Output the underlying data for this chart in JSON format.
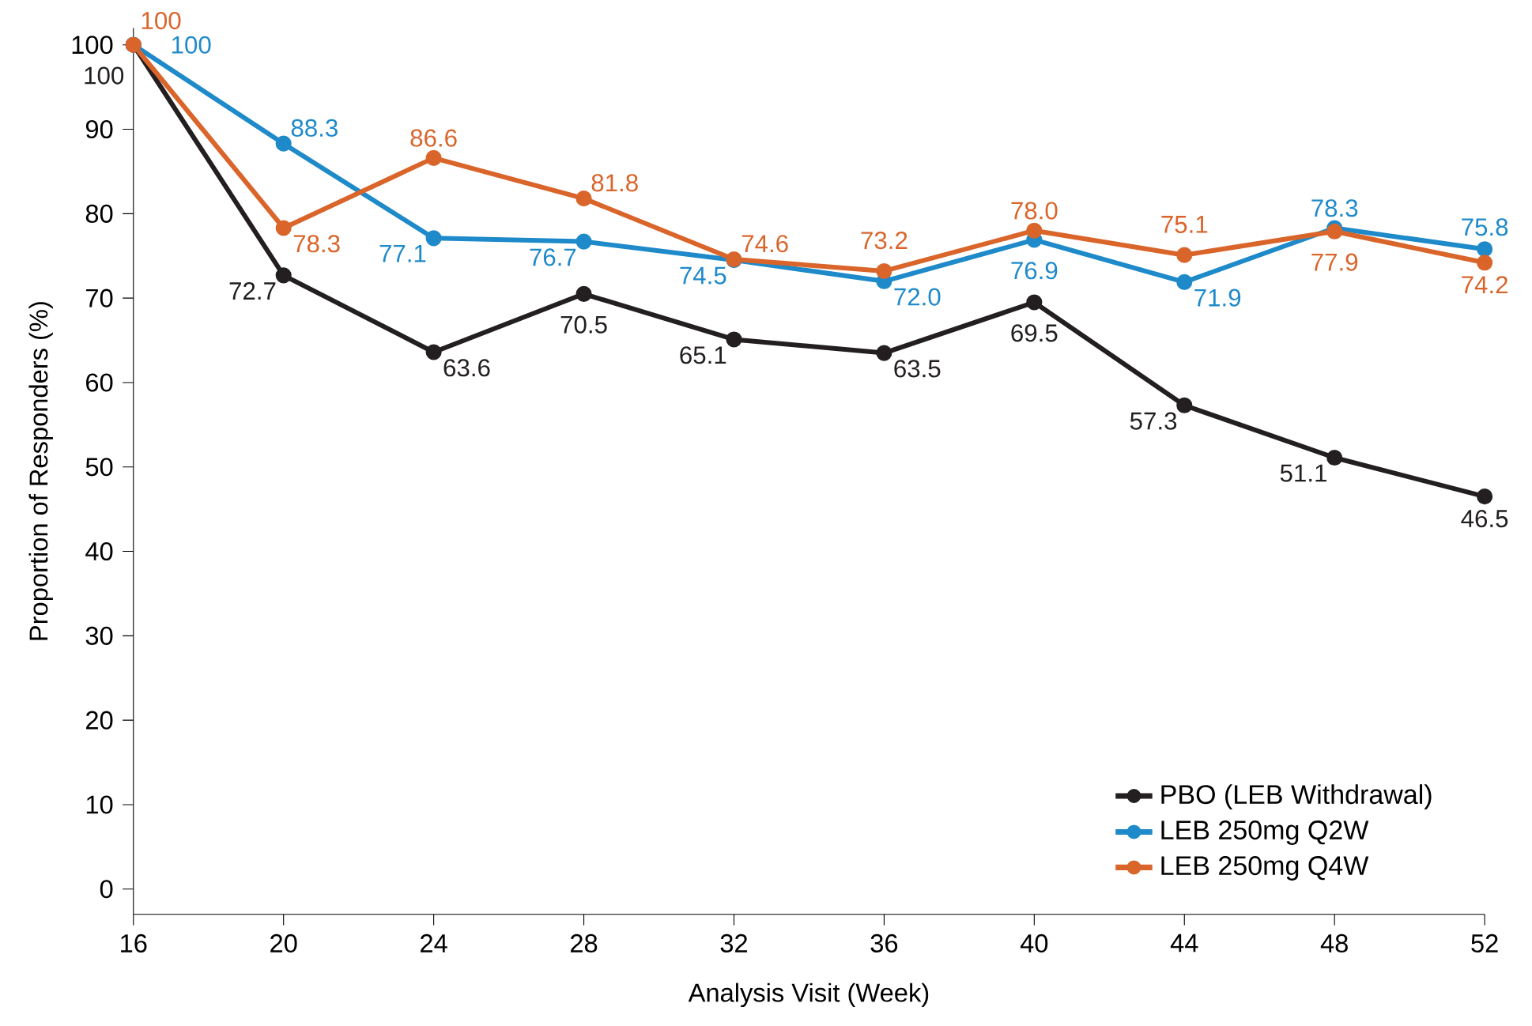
{
  "chart_data": {
    "type": "line",
    "xlabel": "Analysis Visit (Week)",
    "ylabel": "Proportion of Responders (%)",
    "x": [
      16,
      20,
      24,
      28,
      32,
      36,
      40,
      44,
      48,
      52
    ],
    "xlim": [
      16,
      52
    ],
    "xticks": [
      16,
      20,
      24,
      28,
      32,
      36,
      40,
      44,
      48,
      52
    ],
    "ylim": [
      -3,
      102
    ],
    "yticks": [
      0,
      10,
      20,
      30,
      40,
      50,
      60,
      70,
      80,
      90,
      100
    ],
    "grid": false,
    "legend": "bottom right",
    "marker": "circle",
    "line_style": "solid",
    "series": [
      {
        "name": "PBO (LEB Withdrawal)",
        "color": "#231f20",
        "values": [
          100,
          72.7,
          63.6,
          70.5,
          65.1,
          63.5,
          69.5,
          57.3,
          51.1,
          46.5
        ],
        "value_labels": [
          "100",
          "72.7",
          "63.6",
          "70.5",
          "65.1",
          "63.5",
          "69.5",
          "57.3",
          "51.1",
          "46.5"
        ]
      },
      {
        "name": "LEB 250mg Q2W",
        "color": "#1f8ac9",
        "values": [
          100,
          88.3,
          77.1,
          76.7,
          74.5,
          72.0,
          76.9,
          71.9,
          78.3,
          75.8
        ],
        "value_labels": [
          "100",
          "88.3",
          "77.1",
          "76.7",
          "74.5",
          "72.0",
          "76.9",
          "71.9",
          "78.3",
          "75.8"
        ]
      },
      {
        "name": "LEB 250mg Q4W",
        "color": "#d9652b",
        "values": [
          100,
          78.3,
          86.6,
          81.8,
          74.6,
          73.2,
          78.0,
          75.1,
          77.9,
          74.2
        ],
        "value_labels": [
          "100",
          "78.3",
          "86.6",
          "81.8",
          "74.6",
          "73.2",
          "78.0",
          "75.1",
          "77.9",
          "74.2"
        ]
      }
    ]
  }
}
